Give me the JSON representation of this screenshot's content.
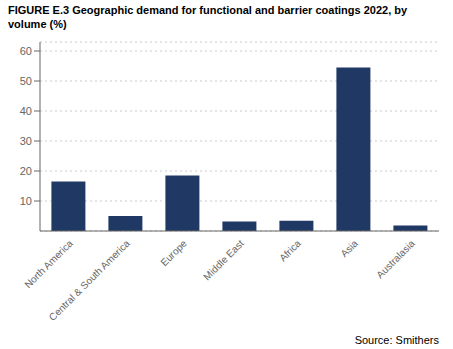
{
  "chart_data": {
    "type": "bar",
    "title": "FIGURE E.3 Geographic demand for functional and barrier coatings 2022, by volume (%)",
    "categories": [
      "North America",
      "Central & South America",
      "Europe",
      "Middle East",
      "Africa",
      "Asia",
      "Australasia"
    ],
    "values": [
      16.5,
      5.0,
      18.5,
      3.2,
      3.4,
      54.5,
      1.8
    ],
    "color": "#1f3864",
    "ylim": [
      0,
      63
    ],
    "yticks": [
      10,
      20,
      30,
      40,
      50,
      60
    ],
    "grid": true,
    "annotations": [
      "Source: Smithers"
    ]
  }
}
